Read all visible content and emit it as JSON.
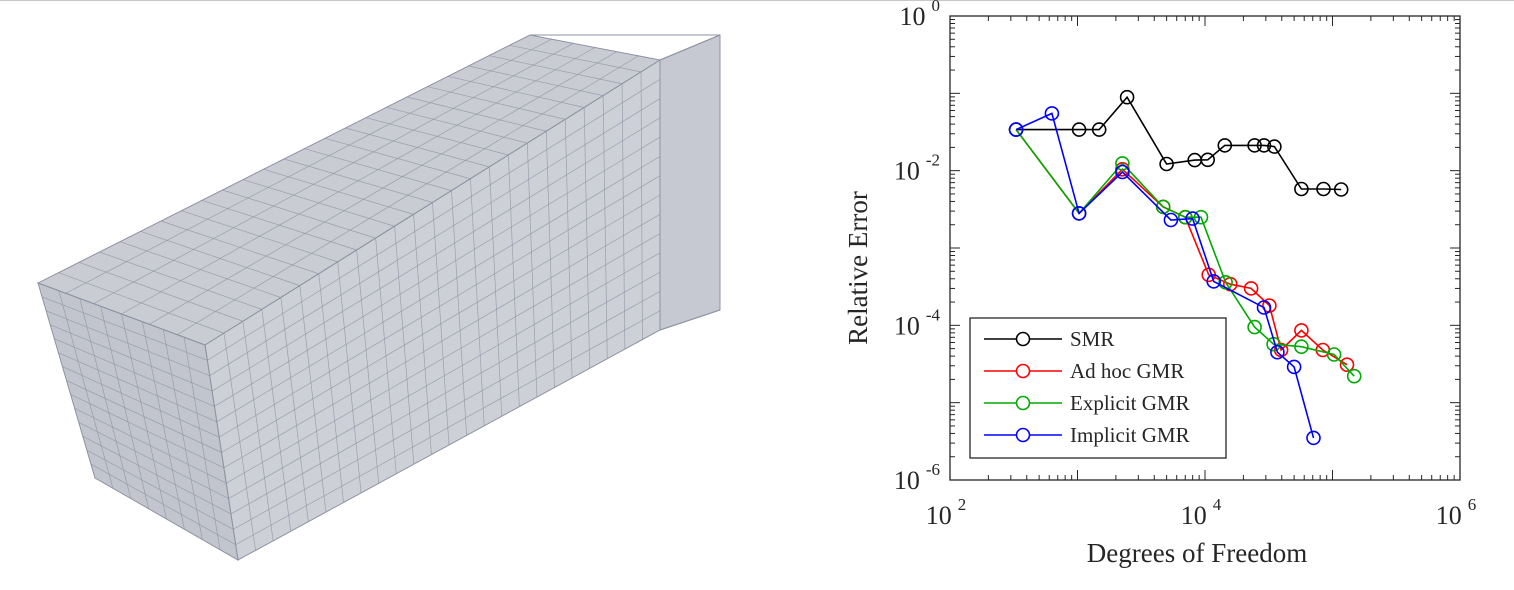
{
  "colors": {
    "mesh_face": "#b3b7c1",
    "mesh_edge": "#8d93a3",
    "axis": "#262626",
    "background": "#ffffff"
  },
  "chart_data": {
    "type": "line",
    "xlabel": "Degrees of Freedom",
    "ylabel": "Relative Error",
    "x_scale": "log",
    "y_scale": "log",
    "xlim": [
      100,
      1000000
    ],
    "ylim": [
      1e-06,
      1
    ],
    "x_ticks": [
      {
        "base": "10",
        "exp": "2",
        "value": 100
      },
      {
        "base": "10",
        "exp": "4",
        "value": 10000
      },
      {
        "base": "10",
        "exp": "6",
        "value": 1000000
      }
    ],
    "y_ticks": [
      {
        "base": "10",
        "exp": "0",
        "value": 1
      },
      {
        "base": "10",
        "exp": "-2",
        "value": 0.01
      },
      {
        "base": "10",
        "exp": "-4",
        "value": 0.0001
      },
      {
        "base": "10",
        "exp": "-6",
        "value": 1e-06
      }
    ],
    "grid": false,
    "legend_position": "bottom-left",
    "marker": "circle-open",
    "series": [
      {
        "name": "SMR",
        "color": "#000000",
        "x": [
          330,
          1030,
          1480,
          2450,
          5000,
          8300,
          10500,
          14300,
          24500,
          29000,
          35000,
          57000,
          85000,
          117000
        ],
        "y": [
          0.034,
          0.034,
          0.034,
          0.089,
          0.0122,
          0.0137,
          0.0138,
          0.0212,
          0.0212,
          0.0212,
          0.0205,
          0.0058,
          0.0058,
          0.0057
        ]
      },
      {
        "name": "Ad hoc GMR",
        "color": "#ff0000",
        "x": [
          330,
          1030,
          2250,
          4700,
          7000,
          10700,
          15800,
          23000,
          32000,
          39500,
          57000,
          84000,
          130000
        ],
        "y": [
          0.034,
          0.0028,
          0.0104,
          0.0034,
          0.0025,
          0.00045,
          0.00034,
          0.0003,
          0.00018,
          4.8e-05,
          8.6e-05,
          4.8e-05,
          3.1e-05
        ]
      },
      {
        "name": "Explicit GMR",
        "color": "#00aa00",
        "x": [
          330,
          1030,
          2250,
          4700,
          7000,
          9300,
          14500,
          24500,
          34500,
          57000,
          103000,
          148000
        ],
        "y": [
          0.034,
          0.0028,
          0.0124,
          0.0034,
          0.0025,
          0.0025,
          0.00036,
          9.5e-05,
          5.7e-05,
          5.3e-05,
          4.2e-05,
          2.2e-05
        ]
      },
      {
        "name": "Implicit GMR",
        "color": "#0000ff",
        "x": [
          330,
          630,
          1030,
          2250,
          5400,
          8000,
          11700,
          29000,
          37000,
          50000,
          71000
        ],
        "y": [
          0.034,
          0.055,
          0.0028,
          0.0096,
          0.0023,
          0.0024,
          0.00037,
          0.00017,
          4.5e-05,
          2.9e-05,
          3.5e-06
        ]
      }
    ]
  }
}
